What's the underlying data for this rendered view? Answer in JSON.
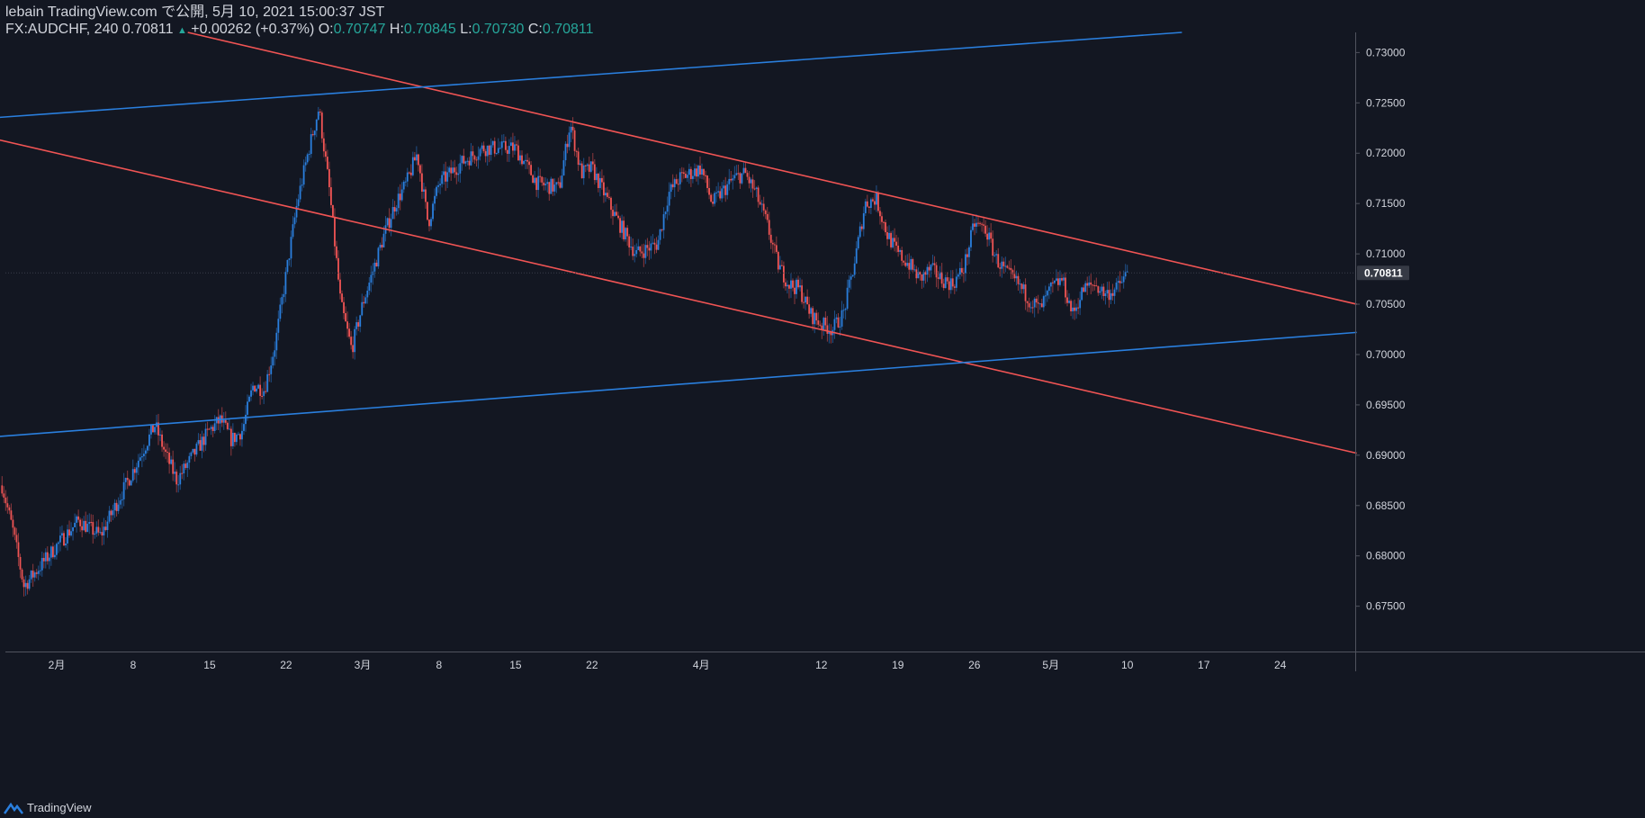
{
  "header": {
    "published": "lebain TradingView.com で公開, 5月 10, 2021 15:00:37 JST",
    "symbol": "FX:AUDCHF, 240",
    "last": "0.70811",
    "arrow": "▲",
    "change": "+0.00262 (+0.37%)",
    "o_label": "O:",
    "o": "0.70747",
    "h_label": "H:",
    "h": "0.70845",
    "l_label": "L:",
    "l": "0.70730",
    "c_label": "C:",
    "c": "0.70811"
  },
  "footer": {
    "brand": "TradingView"
  },
  "colors": {
    "background": "#131722",
    "up": "#2a7fde",
    "down": "#f05454",
    "trend_red": "#f05454",
    "trend_blue": "#2a7fde",
    "text": "#d1d4dc",
    "axis_line": "#50535e",
    "price_label_bg": "#363a45"
  },
  "chart_data": {
    "type": "candlestick",
    "symbol": "FX:AUDCHF",
    "interval": "240",
    "ylim": [
      0.6705,
      0.732
    ],
    "y_ticks": [
      "0.73000",
      "0.72500",
      "0.72000",
      "0.71500",
      "0.71000",
      "0.70500",
      "0.70000",
      "0.69500",
      "0.69000",
      "0.68500",
      "0.68000",
      "0.67500"
    ],
    "current_price": "0.70811",
    "x_ticks": [
      {
        "label": "2月",
        "date": "2021-02-01"
      },
      {
        "label": "8",
        "date": "2021-02-08"
      },
      {
        "label": "15",
        "date": "2021-02-15"
      },
      {
        "label": "22",
        "date": "2021-02-22"
      },
      {
        "label": "3月",
        "date": "2021-03-01"
      },
      {
        "label": "8",
        "date": "2021-03-08"
      },
      {
        "label": "15",
        "date": "2021-03-15"
      },
      {
        "label": "22",
        "date": "2021-03-22"
      },
      {
        "label": "4月",
        "date": "2021-04-01"
      },
      {
        "label": "12",
        "date": "2021-04-12"
      },
      {
        "label": "19",
        "date": "2021-04-19"
      },
      {
        "label": "26",
        "date": "2021-04-26"
      },
      {
        "label": "5月",
        "date": "2021-05-03"
      },
      {
        "label": "10",
        "date": "2021-05-10"
      },
      {
        "label": "17",
        "date": "2021-05-17"
      },
      {
        "label": "24",
        "date": "2021-05-24"
      }
    ],
    "price_path": [
      [
        "2021-01-27",
        0.687
      ],
      [
        "2021-01-28",
        0.6825
      ],
      [
        "2021-01-29",
        0.677
      ],
      [
        "2021-02-01",
        0.681
      ],
      [
        "2021-02-03",
        0.6835
      ],
      [
        "2021-02-05",
        0.682
      ],
      [
        "2021-02-08",
        0.6885
      ],
      [
        "2021-02-10",
        0.693
      ],
      [
        "2021-02-11",
        0.69
      ],
      [
        "2021-02-12",
        0.6875
      ],
      [
        "2021-02-15",
        0.6925
      ],
      [
        "2021-02-16",
        0.6935
      ],
      [
        "2021-02-17",
        0.6915
      ],
      [
        "2021-02-18",
        0.6925
      ],
      [
        "2021-02-19",
        0.697
      ],
      [
        "2021-02-20",
        0.6965
      ],
      [
        "2021-02-21",
        0.701
      ],
      [
        "2021-02-22",
        0.708
      ],
      [
        "2021-02-23",
        0.715
      ],
      [
        "2021-02-24",
        0.72
      ],
      [
        "2021-02-25",
        0.7245
      ],
      [
        "2021-02-26",
        0.716
      ],
      [
        "2021-02-27",
        0.705
      ],
      [
        "2021-02-28",
        0.7005
      ],
      [
        "2021-03-01",
        0.705
      ],
      [
        "2021-03-03",
        0.712
      ],
      [
        "2021-03-04",
        0.715
      ],
      [
        "2021-03-05",
        0.717
      ],
      [
        "2021-03-06",
        0.72
      ],
      [
        "2021-03-07",
        0.713
      ],
      [
        "2021-03-08",
        0.717
      ],
      [
        "2021-03-10",
        0.719
      ],
      [
        "2021-03-12",
        0.7205
      ],
      [
        "2021-03-15",
        0.7205
      ],
      [
        "2021-03-17",
        0.717
      ],
      [
        "2021-03-19",
        0.7165
      ],
      [
        "2021-03-20",
        0.723
      ],
      [
        "2021-03-21",
        0.718
      ],
      [
        "2021-03-22",
        0.7185
      ],
      [
        "2021-03-24",
        0.714
      ],
      [
        "2021-03-26",
        0.71
      ],
      [
        "2021-03-28",
        0.711
      ],
      [
        "2021-03-29",
        0.716
      ],
      [
        "2021-03-30",
        0.7175
      ],
      [
        "2021-04-01",
        0.7185
      ],
      [
        "2021-04-02",
        0.715
      ],
      [
        "2021-04-04",
        0.7175
      ],
      [
        "2021-04-05",
        0.718
      ],
      [
        "2021-04-06",
        0.716
      ],
      [
        "2021-04-07",
        0.713
      ],
      [
        "2021-04-08",
        0.709
      ],
      [
        "2021-04-09",
        0.707
      ],
      [
        "2021-04-10",
        0.7065
      ],
      [
        "2021-04-11",
        0.704
      ],
      [
        "2021-04-12",
        0.703
      ],
      [
        "2021-04-13",
        0.7025
      ],
      [
        "2021-04-14",
        0.704
      ],
      [
        "2021-04-15",
        0.709
      ],
      [
        "2021-04-16",
        0.715
      ],
      [
        "2021-04-17",
        0.7155
      ],
      [
        "2021-04-18",
        0.712
      ],
      [
        "2021-04-19",
        0.71
      ],
      [
        "2021-04-20",
        0.709
      ],
      [
        "2021-04-21",
        0.7075
      ],
      [
        "2021-04-22",
        0.7085
      ],
      [
        "2021-04-23",
        0.7075
      ],
      [
        "2021-04-24",
        0.707
      ],
      [
        "2021-04-25",
        0.7085
      ],
      [
        "2021-04-26",
        0.713
      ],
      [
        "2021-04-27",
        0.7125
      ],
      [
        "2021-04-28",
        0.7095
      ],
      [
        "2021-04-29",
        0.708
      ],
      [
        "2021-04-30",
        0.707
      ],
      [
        "2021-05-01",
        0.7055
      ],
      [
        "2021-05-02",
        0.7045
      ],
      [
        "2021-05-03",
        0.7065
      ],
      [
        "2021-05-04",
        0.7075
      ],
      [
        "2021-05-05",
        0.704
      ],
      [
        "2021-05-06",
        0.7065
      ],
      [
        "2021-05-07",
        0.707
      ],
      [
        "2021-05-08",
        0.706
      ],
      [
        "2021-05-09",
        0.7065
      ],
      [
        "2021-05-10",
        0.7081
      ]
    ],
    "trendlines": [
      {
        "color": "red",
        "points": [
          [
            "2021-02-13",
            0.732
          ],
          [
            "2021-05-31",
            0.705
          ]
        ]
      },
      {
        "color": "red",
        "points": [
          [
            "2021-01-26",
            0.7215
          ],
          [
            "2021-05-31",
            0.6902
          ]
        ]
      },
      {
        "color": "blue",
        "points": [
          [
            "2021-01-26",
            0.7235
          ],
          [
            "2021-05-15",
            0.732
          ]
        ]
      },
      {
        "color": "blue",
        "points": [
          [
            "2021-01-26",
            0.6918
          ],
          [
            "2021-05-31",
            0.7022
          ]
        ]
      }
    ]
  }
}
